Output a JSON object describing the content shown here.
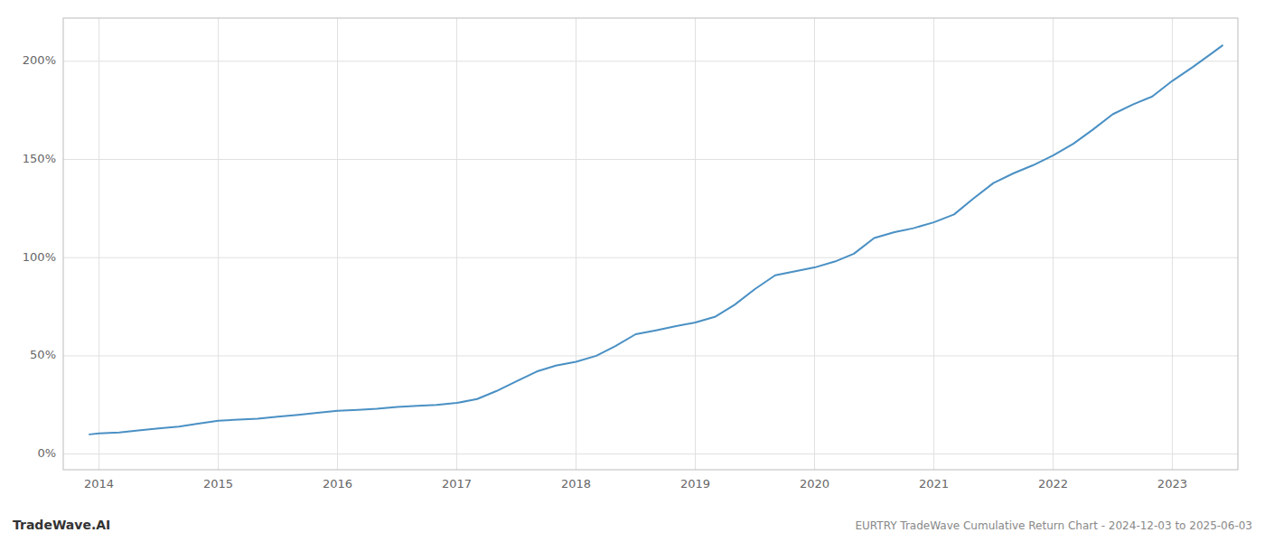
{
  "chart_data": {
    "type": "line",
    "annotations": [
      "TradeWave.AI",
      "EURTRY TradeWave Cumulative Return Chart - 2024-12-03 to 2025-06-03"
    ],
    "x": [
      2013.92,
      2014.0,
      2014.17,
      2014.33,
      2014.5,
      2014.67,
      2014.83,
      2015.0,
      2015.17,
      2015.33,
      2015.5,
      2015.67,
      2015.83,
      2016.0,
      2016.17,
      2016.33,
      2016.5,
      2016.67,
      2016.83,
      2017.0,
      2017.17,
      2017.33,
      2017.5,
      2017.67,
      2017.83,
      2018.0,
      2018.17,
      2018.33,
      2018.5,
      2018.67,
      2018.83,
      2019.0,
      2019.17,
      2019.33,
      2019.5,
      2019.67,
      2019.83,
      2020.0,
      2020.17,
      2020.33,
      2020.5,
      2020.67,
      2020.83,
      2021.0,
      2021.17,
      2021.33,
      2021.5,
      2021.67,
      2021.83,
      2022.0,
      2022.17,
      2022.33,
      2022.5,
      2022.67,
      2022.83,
      2023.0,
      2023.17,
      2023.33,
      2023.42
    ],
    "values": [
      10,
      10.5,
      11,
      12,
      13,
      14,
      15.5,
      17,
      17.5,
      18,
      19,
      20,
      21,
      22,
      22.5,
      23,
      24,
      24.5,
      25,
      26,
      28,
      32,
      37,
      42,
      45,
      47,
      50,
      55,
      61,
      63,
      65,
      67,
      70,
      76,
      84,
      91,
      93,
      95,
      98,
      102,
      110,
      113,
      115,
      118,
      122,
      130,
      138,
      143,
      147,
      152,
      158,
      165,
      173,
      178,
      182,
      190,
      197,
      204,
      208
    ],
    "color": "#4a90c4",
    "xlim": [
      2013.7,
      2023.55
    ],
    "ylim": [
      -8,
      222
    ],
    "xticks": [
      2014,
      2015,
      2016,
      2017,
      2018,
      2019,
      2020,
      2021,
      2022,
      2023
    ],
    "yticks": [
      {
        "value": 0,
        "label": "0%"
      },
      {
        "value": 50,
        "label": "50%"
      },
      {
        "value": 100,
        "label": "100%"
      },
      {
        "value": 150,
        "label": "150%"
      },
      {
        "value": 200,
        "label": "200%"
      }
    ],
    "grid": true
  }
}
